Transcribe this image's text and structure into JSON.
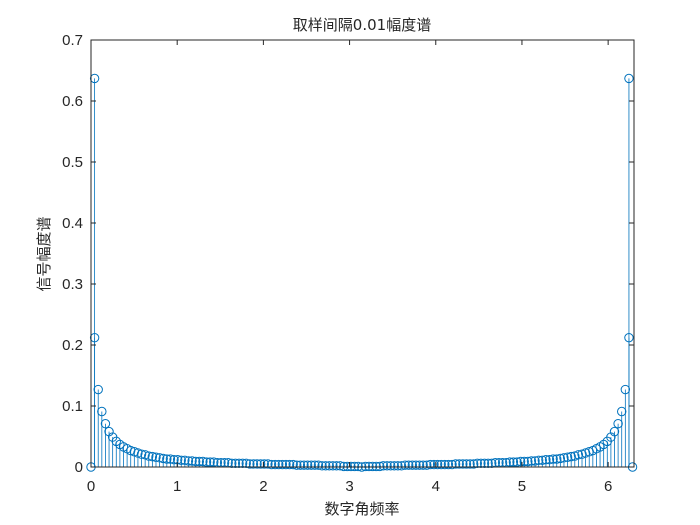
{
  "chart_data": {
    "type": "stem",
    "title": "取样间隔0.01幅度谱",
    "xlabel": "数字角频率",
    "ylabel": "信号幅度谱",
    "xlim": [
      0,
      6.3
    ],
    "ylim": [
      0,
      0.7
    ],
    "xticks": [
      0,
      1,
      2,
      3,
      4,
      5,
      6
    ],
    "yticks": [
      0,
      0.1,
      0.2,
      0.3,
      0.4,
      0.5,
      0.6,
      0.7
    ],
    "grid": false,
    "box": true,
    "marker": "o",
    "series": [
      {
        "x": [
          0,
          0.0419,
          0.0838,
          0.1257,
          0.1676,
          0.2094,
          0.2513,
          0.2932,
          0.3351,
          0.377,
          0.4189,
          0.4608,
          0.5027,
          0.5445,
          0.5864,
          0.6283,
          0.6702,
          0.7121,
          0.754,
          0.7959,
          0.8378,
          0.8796,
          0.9215,
          0.9634,
          1.0053,
          1.0472,
          1.0891,
          1.131,
          1.1729,
          1.2147,
          1.2566,
          1.2985,
          1.3404,
          1.3823,
          1.4242,
          1.4661,
          1.508,
          1.5498,
          1.5917,
          1.6336,
          1.6755,
          1.7174,
          1.7593,
          1.8012,
          1.8431,
          1.885,
          1.9268,
          1.9687,
          2.0106,
          2.0525,
          2.0944,
          2.1363,
          2.1782,
          2.2201,
          2.2619,
          2.3038,
          2.3457,
          2.3876,
          2.4295,
          2.4714,
          2.5133,
          2.5552,
          2.597,
          2.6389,
          2.6808,
          2.7227,
          2.7646,
          2.8065,
          2.8484,
          2.8903,
          2.9322,
          2.974,
          3.0159,
          3.0578,
          3.0997,
          3.1416,
          3.1835,
          3.2254,
          3.2673,
          3.3092,
          3.351,
          3.3929,
          3.4348,
          3.4767,
          3.5186,
          3.5605,
          3.6024,
          3.6443,
          3.6861,
          3.728,
          3.7699,
          3.8118,
          3.8537,
          3.8956,
          3.9375,
          3.9794,
          4.0212,
          4.0631,
          4.105,
          4.1469,
          4.1888,
          4.2307,
          4.2726,
          4.3145,
          4.3563,
          4.3982,
          4.4401,
          4.482,
          4.5239,
          4.5658,
          4.6077,
          4.6496,
          4.6914,
          4.7333,
          4.7752,
          4.8171,
          4.859,
          4.9009,
          4.9428,
          4.9847,
          5.0265,
          5.0684,
          5.1103,
          5.1522,
          5.1941,
          5.236,
          5.2779,
          5.3198,
          5.3617,
          5.4035,
          5.4454,
          5.4873,
          5.5292,
          5.5711,
          5.613,
          5.6549,
          5.6968,
          5.7386,
          5.7805,
          5.8224,
          5.8643,
          5.9062,
          5.9481,
          5.99,
          6.0319,
          6.0737,
          6.1156,
          6.1575,
          6.1994,
          6.2413,
          6.2832
        ],
        "y": [
          0.0,
          0.212,
          0.127,
          0.091,
          0.071,
          0.058,
          0.049,
          0.042,
          0.037,
          0.033,
          0.03,
          0.027,
          0.025,
          0.023,
          0.021,
          0.02,
          0.018,
          0.017,
          0.016,
          0.015,
          0.014,
          0.013,
          0.013,
          0.012,
          0.012,
          0.011,
          0.011,
          0.01,
          0.01,
          0.009,
          0.009,
          0.009,
          0.008,
          0.008,
          0.008,
          0.007,
          0.007,
          0.007,
          0.007,
          0.006,
          0.006,
          0.006,
          0.006,
          0.006,
          0.005,
          0.005,
          0.005,
          0.005,
          0.005,
          0.005,
          0.004,
          0.004,
          0.004,
          0.004,
          0.004,
          0.004,
          0.004,
          0.003,
          0.003,
          0.003,
          0.003,
          0.003,
          0.003,
          0.003,
          0.002,
          0.002,
          0.002,
          0.002,
          0.002,
          0.002,
          0.001,
          0.001,
          0.001,
          0.001,
          0.001,
          0.0,
          0.001,
          0.001,
          0.001,
          0.001,
          0.001,
          0.002,
          0.002,
          0.002,
          0.002,
          0.002,
          0.002,
          0.003,
          0.003,
          0.003,
          0.003,
          0.003,
          0.003,
          0.003,
          0.004,
          0.004,
          0.004,
          0.004,
          0.004,
          0.004,
          0.004,
          0.005,
          0.005,
          0.005,
          0.005,
          0.005,
          0.005,
          0.006,
          0.006,
          0.006,
          0.006,
          0.006,
          0.007,
          0.007,
          0.007,
          0.007,
          0.008,
          0.008,
          0.008,
          0.009,
          0.009,
          0.009,
          0.01,
          0.01,
          0.011,
          0.011,
          0.012,
          0.012,
          0.013,
          0.013,
          0.014,
          0.015,
          0.016,
          0.017,
          0.018,
          0.02,
          0.021,
          0.023,
          0.025,
          0.027,
          0.03,
          0.033,
          0.037,
          0.042,
          0.049,
          0.058,
          0.071,
          0.091,
          0.127,
          0.212,
          0.0
        ],
        "color": "#0072BD"
      },
      {
        "x": [
          0.0419,
          6.2413
        ],
        "y": [
          0.637,
          0.637
        ],
        "color": "#0072BD"
      }
    ]
  }
}
